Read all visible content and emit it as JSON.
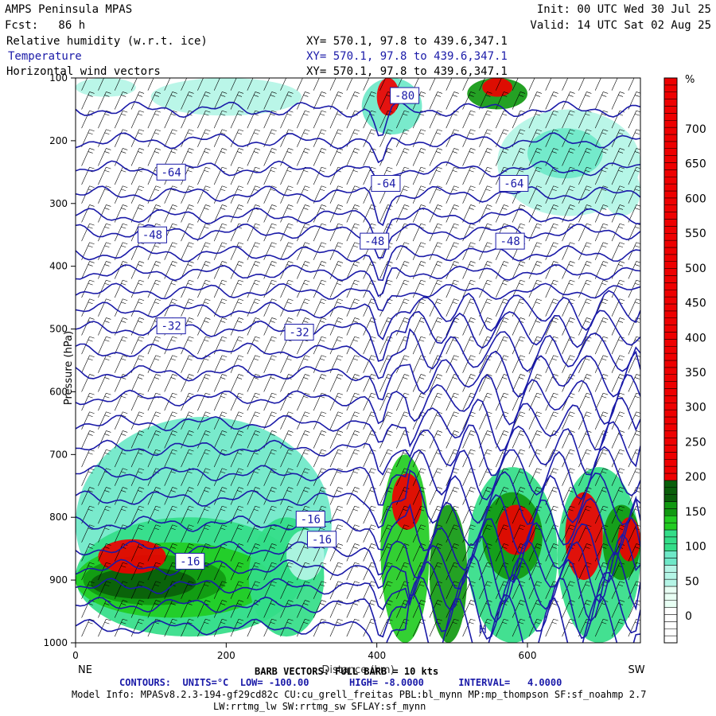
{
  "header": {
    "model": "AMPS Peninsula MPAS",
    "init": "Init: 00 UTC Wed 30 Jul 25",
    "fcst": "Fcst:   86 h",
    "valid": "Valid: 14 UTC Sat 02 Aug 25",
    "line1_field": "Relative humidity (w.r.t. ice)",
    "line2_field": "Temperature",
    "line3_field": "Horizontal wind vectors",
    "xy": "XY= 570.1, 97.8 to 439.6,347.1"
  },
  "footer": {
    "barb": "BARB VECTORS: FULL BARB = 10 kts",
    "contours": "CONTOURS:  UNITS=°C  LOW= -100.00       HIGH= -8.0000      INTERVAL=   4.0000",
    "model_info": "Model Info: MPASv8.2.3-194-gf29cd82c CU:cu_grell_freitas PBL:bl_mynn MP:mp_thompson SF:sf_noahmp 2.7",
    "model_info2": "LW:rrtmg_lw SW:rrtmg_sw SFLAY:sf_mynn"
  },
  "colors": {
    "contour": "#1a1aa8",
    "rh_scale": [
      "#ffffff",
      "#e8fff4",
      "#b4f5e6",
      "#6ee8c8",
      "#33dd88",
      "#22cc22",
      "#119911",
      "#0a5e0a",
      "#cc4422",
      "#ee0000"
    ]
  },
  "chart_data": {
    "type": "heatmap",
    "xlabel": "Distance (km)",
    "ylabel": "Pressure (hPa)",
    "x_end_labels": [
      "NE",
      "SW"
    ],
    "xlim": [
      0,
      750
    ],
    "ylim": [
      1000,
      100
    ],
    "x_ticks": [
      0,
      200,
      400,
      600
    ],
    "y_ticks": [
      100,
      200,
      300,
      400,
      500,
      600,
      700,
      800,
      900,
      1000
    ],
    "colorbar": {
      "unit": "%",
      "labels": [
        0,
        50,
        100,
        150,
        200,
        250,
        300,
        350,
        400,
        450,
        500,
        550,
        600,
        650,
        700
      ]
    },
    "contour_labels": [
      {
        "text": "-64",
        "x": 110,
        "p": 250
      },
      {
        "text": "-64",
        "x": 395,
        "p": 268
      },
      {
        "text": "-64",
        "x": 565,
        "p": 268
      },
      {
        "text": "-48",
        "x": 85,
        "p": 350
      },
      {
        "text": "-48",
        "x": 380,
        "p": 360
      },
      {
        "text": "-48",
        "x": 560,
        "p": 360
      },
      {
        "text": "-32",
        "x": 110,
        "p": 495
      },
      {
        "text": "-32",
        "x": 280,
        "p": 505
      },
      {
        "text": "-16",
        "x": 295,
        "p": 803
      },
      {
        "text": "-16",
        "x": 310,
        "p": 835
      },
      {
        "text": "-16",
        "x": 135,
        "p": 870
      },
      {
        "text": "-80",
        "x": 420,
        "p": 128
      }
    ],
    "surface_marker": {
      "text": "H",
      "x": 535,
      "p": 985
    }
  }
}
